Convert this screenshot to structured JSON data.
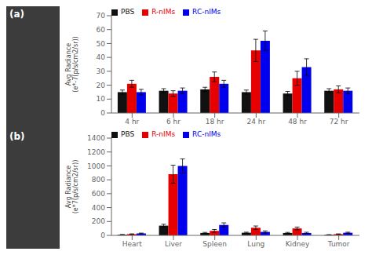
{
  "chart_data": [
    {
      "type": "bar",
      "annotations": [
        "(a)"
      ],
      "y_label": "Avg Radiance\n(e*-7(p/s/cm2/sr))",
      "categories": [
        "4 hr",
        "6 hr",
        "18 hr",
        "24 hr",
        "48 hr",
        "72 hr"
      ],
      "series": [
        {
          "name": "PBS",
          "color": "#111111",
          "values": [
            15,
            16,
            17,
            15,
            14,
            16
          ],
          "errors": [
            1.5,
            1.5,
            1.5,
            1.5,
            1.5,
            1.5
          ]
        },
        {
          "name": "R-nIMs",
          "color": "#e60000",
          "values": [
            21,
            14,
            26,
            45,
            25,
            17
          ],
          "errors": [
            2.5,
            2.0,
            3.5,
            8.0,
            5.0,
            2.5
          ]
        },
        {
          "name": "RC-nIMs",
          "color": "#0000ee",
          "values": [
            15,
            16,
            21,
            52,
            33,
            16
          ],
          "errors": [
            2.0,
            2.0,
            2.5,
            7.0,
            6.0,
            2.0
          ]
        }
      ],
      "ylim": [
        0,
        70
      ],
      "yticks": [
        0,
        10,
        20,
        30,
        40,
        50,
        60,
        70
      ],
      "legend": "upper left"
    },
    {
      "type": "bar",
      "annotations": [
        "(b)"
      ],
      "y_label": "Avg Radiance\n(e*7(p/s/cm2/sr))",
      "categories": [
        "Heart",
        "Liver",
        "Spleen",
        "Lung",
        "Kidney",
        "Tumor"
      ],
      "series": [
        {
          "name": "PBS",
          "color": "#111111",
          "values": [
            10,
            140,
            35,
            38,
            35,
            8
          ],
          "errors": [
            3,
            20,
            8,
            8,
            8,
            3
          ]
        },
        {
          "name": "R-nIMs",
          "color": "#e60000",
          "values": [
            18,
            880,
            65,
            110,
            100,
            18
          ],
          "errors": [
            4,
            130,
            20,
            25,
            20,
            4
          ]
        },
        {
          "name": "RC-nIMs",
          "color": "#0000ee",
          "values": [
            28,
            1000,
            150,
            50,
            35,
            38
          ],
          "errors": [
            5,
            100,
            30,
            15,
            10,
            8
          ]
        }
      ],
      "ylim": [
        0,
        1400
      ],
      "yticks": [
        0,
        200,
        400,
        600,
        800,
        1000,
        1200,
        1400
      ],
      "legend": "upper left"
    }
  ]
}
